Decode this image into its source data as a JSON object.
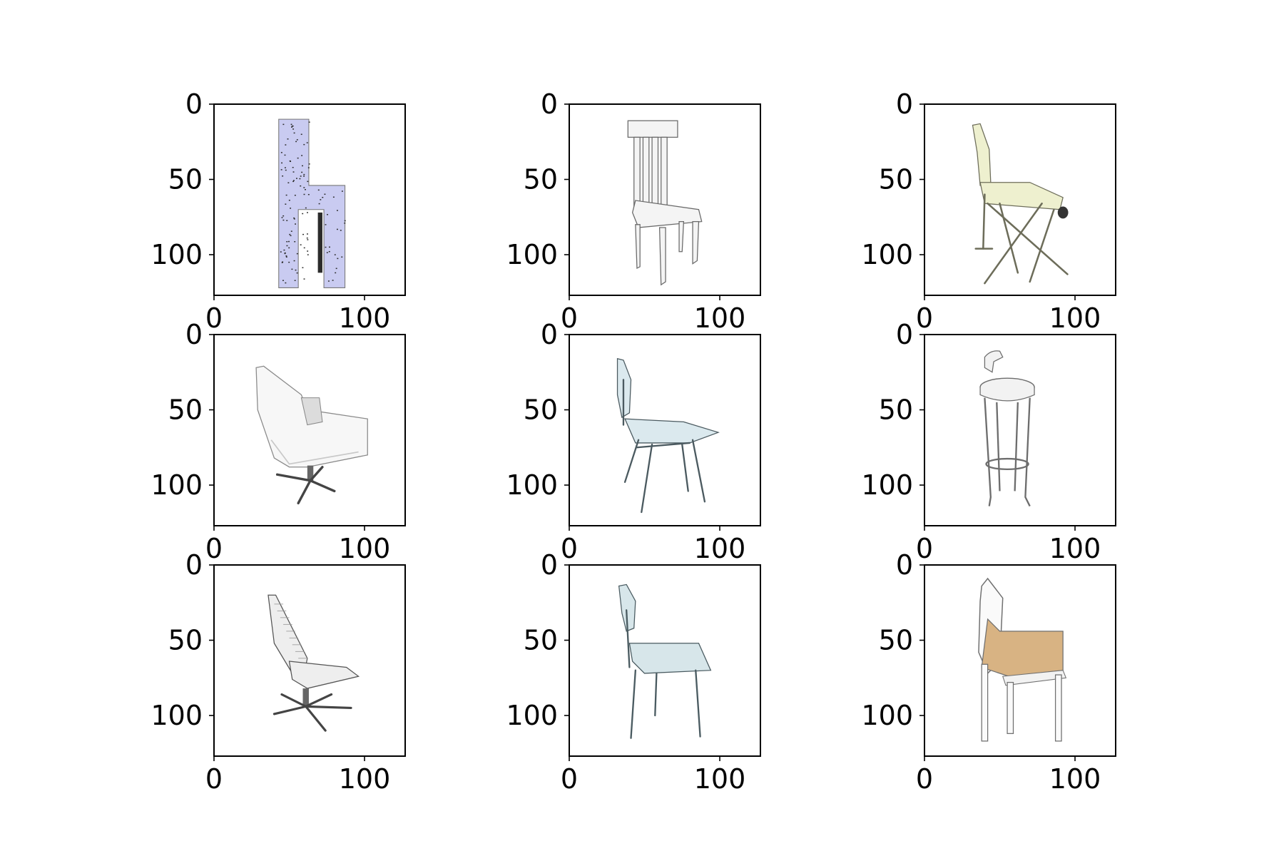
{
  "figure": {
    "subplot_grid": {
      "rows": 3,
      "cols": 3
    },
    "axis": {
      "xlim": [
        0,
        127
      ],
      "ylim": [
        127,
        0
      ],
      "y_inverted": true,
      "xticks": [
        0,
        100
      ],
      "yticks": [
        0,
        50,
        100
      ]
    },
    "xtick_labels": [
      "0",
      "100"
    ],
    "ytick_labels": [
      "0",
      "50",
      "100"
    ],
    "panels": [
      {
        "icon": "blocky-lavender-chair-icon",
        "colors": {
          "fill": "#c9cbf1",
          "edge": "#2b2b2b"
        }
      },
      {
        "icon": "wooden-slat-back-chair-icon",
        "colors": {
          "fill": "#f4f4f4",
          "edge": "#6a6a6a"
        }
      },
      {
        "icon": "folding-chair-icon",
        "colors": {
          "fill": "#eef0cf",
          "edge": "#6d6d5a"
        }
      },
      {
        "icon": "swivel-lounge-chair-icon",
        "colors": {
          "fill": "#f7f7f7",
          "edge": "#8a8a8a"
        }
      },
      {
        "icon": "school-chair-icon",
        "colors": {
          "fill": "#dbe9ee",
          "edge": "#4b5a60"
        }
      },
      {
        "icon": "bar-stool-icon",
        "colors": {
          "fill": "#f2f2f2",
          "edge": "#6d6d6d"
        }
      },
      {
        "icon": "office-chair-icon",
        "colors": {
          "fill": "#eeeeee",
          "edge": "#555555"
        }
      },
      {
        "icon": "school-chair-pale-blue-icon",
        "colors": {
          "fill": "#d7e6ea",
          "edge": "#4a5b61"
        }
      },
      {
        "icon": "tan-seat-side-chair-icon",
        "colors": {
          "fill": "#d8b383",
          "edge": "#707070"
        }
      }
    ]
  }
}
